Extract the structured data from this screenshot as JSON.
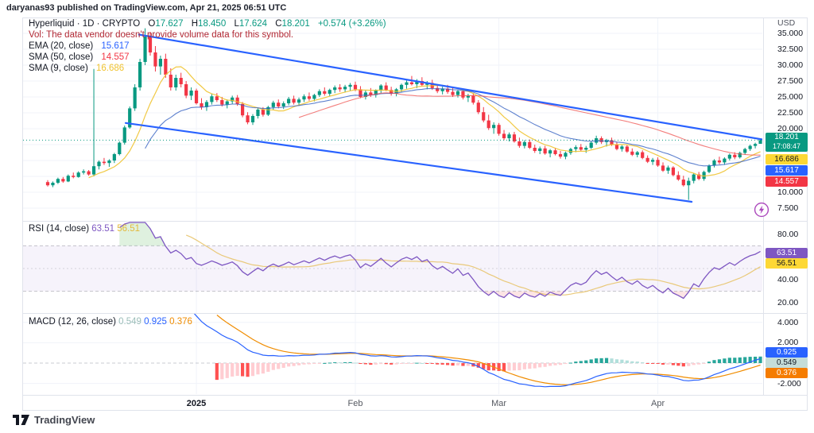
{
  "header": {
    "published_line": "daryanas93 published on TradingView.com, Apr 21, 2025 06:51 UTC"
  },
  "watermark": {
    "brand": "TradingView"
  },
  "legend": {
    "symbol_text": "Hyperliquid · 1D · CRYPTO",
    "ohlc": {
      "o_l": "O",
      "o": "17.627",
      "h_l": "H",
      "h": "18.450",
      "l_l": "L",
      "l": "17.624",
      "c_l": "C",
      "c": "18.201",
      "chg": "+0.574 (+3.26%)"
    },
    "vol_line": "Vol: The data vendor doesn't provide volume data for this symbol.",
    "ema20": {
      "label": "EMA (20, close)",
      "value": "15.617"
    },
    "sma50": {
      "label": "SMA (50, close)",
      "value": "14.557"
    },
    "sma9": {
      "label": "SMA (9, close)",
      "value": "16.686"
    }
  },
  "rsi_pane": {
    "title": "RSI (14, close)",
    "value": "63.51",
    "ma_value": "56.51",
    "axis_ticks": [
      "80.00",
      "40.00",
      "20.00"
    ]
  },
  "macd_pane": {
    "title": "MACD (12, 26, close)",
    "hist_value": "0.549",
    "macd_value": "0.925",
    "signal_value": "0.376",
    "axis_ticks": [
      "4.000",
      "2.000",
      "-2.000"
    ]
  },
  "price_axis": {
    "currency": "USD",
    "ticks": [
      "35.000",
      "32.500",
      "30.000",
      "27.500",
      "25.000",
      "22.500",
      "20.000",
      "10.000",
      "7.500"
    ],
    "badges": {
      "last": {
        "value": "18.201",
        "countdown": "17:08:47"
      },
      "sma9": {
        "value": "16.686"
      },
      "ema20": {
        "value": "15.617"
      },
      "sma50": {
        "value": "14.557"
      }
    }
  },
  "time_axis": {
    "ticks": [
      {
        "label": "2025",
        "i": 29
      },
      {
        "label": "Feb",
        "i": 60
      },
      {
        "label": "Mar",
        "i": 88
      },
      {
        "label": "Apr",
        "i": 119
      }
    ]
  },
  "colors": {
    "up": "#089981",
    "down": "#f23645",
    "ohlc_values": "#089981",
    "vol_warning": "#b22833",
    "ema20_line": "#3661c2",
    "sma50_line": "#ef5350",
    "sma9_line": "#f0c330",
    "ema20_value": "#2962ff",
    "sma50_value": "#f23645",
    "sma9_value": "#f0c330",
    "channel": "#2962ff",
    "last_price_line": "#089981",
    "rsi_line": "#7e57c2",
    "rsi_ma_line": "#e8c46b",
    "rsi_band": "#7e57c2",
    "rsi_value": "#7e57c2",
    "rsi_ma_value": "#e3b93c",
    "overbought_fill": "#4caf50",
    "oversold_fill": "#ef5350",
    "macd_line": "#2962ff",
    "signal_line": "#f08c00",
    "macd_value": "#2962ff",
    "signal_value": "#f08c00",
    "hist_value": "#9bbdb8",
    "hist_grow_above": "#26a69a",
    "hist_fall_above": "#b2dfdb",
    "hist_fall_below": "#ff5252",
    "hist_grow_below": "#ffcdd2",
    "badge_last_bg": "#089981",
    "badge_sma9_bg": "#fdd835",
    "badge_ema20_bg": "#2962ff",
    "badge_sma50_bg": "#f23645",
    "badge_rsi_bg": "#7e57c2",
    "badge_rsima_bg": "#fdd835",
    "badge_macd_bg": "#2962ff",
    "badge_hist_bg": "#c5ddd9",
    "badge_signal_bg": "#f57c00",
    "grid": "#f0f3fa",
    "frame": "#e0e3eb",
    "dashed_level": "#9598a1"
  },
  "chart_data": {
    "type": "candlestick",
    "symbol": "Hyperliquid",
    "interval": "1D",
    "currency": "USD",
    "price_range": [
      5.5,
      37.5
    ],
    "last_close": 18.201,
    "candles": [
      [
        11.6,
        11.9,
        10.9,
        11.1
      ],
      [
        11.1,
        11.7,
        10.8,
        11.5
      ],
      [
        11.5,
        12.3,
        11.3,
        12.1
      ],
      [
        12.1,
        12.4,
        11.5,
        11.7
      ],
      [
        11.7,
        12.8,
        11.6,
        12.6
      ],
      [
        12.6,
        13.1,
        12.2,
        12.4
      ],
      [
        12.4,
        13.3,
        12.3,
        13.1
      ],
      [
        13.1,
        13.6,
        12.8,
        13.3
      ],
      [
        13.3,
        13.5,
        12.6,
        12.8
      ],
      [
        12.8,
        29.4,
        12.5,
        14.1
      ],
      [
        14.1,
        15.0,
        13.6,
        14.8
      ],
      [
        14.8,
        15.4,
        14.3,
        14.6
      ],
      [
        14.6,
        15.2,
        14.0,
        15.0
      ],
      [
        15.0,
        16.2,
        14.6,
        16.0
      ],
      [
        16.0,
        18.0,
        15.8,
        17.8
      ],
      [
        17.8,
        20.5,
        17.5,
        20.2
      ],
      [
        20.2,
        23.5,
        20.0,
        23.2
      ],
      [
        23.2,
        27.0,
        22.8,
        26.5
      ],
      [
        26.5,
        31.0,
        26.0,
        30.5
      ],
      [
        30.5,
        35.8,
        30.0,
        34.5
      ],
      [
        34.5,
        35.2,
        31.5,
        32.0
      ],
      [
        32.0,
        33.0,
        29.0,
        29.8
      ],
      [
        29.8,
        31.5,
        28.5,
        31.0
      ],
      [
        31.0,
        31.8,
        28.0,
        28.5
      ],
      [
        28.5,
        29.5,
        26.0,
        26.5
      ],
      [
        26.5,
        28.5,
        26.0,
        28.0
      ],
      [
        28.0,
        28.8,
        26.5,
        27.0
      ],
      [
        27.0,
        27.5,
        24.8,
        25.2
      ],
      [
        25.2,
        26.5,
        24.5,
        26.0
      ],
      [
        26.0,
        26.3,
        23.8,
        24.0
      ],
      [
        24.0,
        24.8,
        23.0,
        23.4
      ],
      [
        23.4,
        24.5,
        22.8,
        24.2
      ],
      [
        24.2,
        25.5,
        23.8,
        25.1
      ],
      [
        25.1,
        25.6,
        24.2,
        24.5
      ],
      [
        24.5,
        25.0,
        23.5,
        23.8
      ],
      [
        23.8,
        24.6,
        23.2,
        24.3
      ],
      [
        24.3,
        25.2,
        23.9,
        24.9
      ],
      [
        24.9,
        25.3,
        23.6,
        23.9
      ],
      [
        23.9,
        24.2,
        21.8,
        22.1
      ],
      [
        22.1,
        22.6,
        20.7,
        21.0
      ],
      [
        21.0,
        22.3,
        20.6,
        22.0
      ],
      [
        22.0,
        23.2,
        21.6,
        23.0
      ],
      [
        23.0,
        23.4,
        21.9,
        22.2
      ],
      [
        22.2,
        23.6,
        22.0,
        23.4
      ],
      [
        23.4,
        24.4,
        23.0,
        24.1
      ],
      [
        24.1,
        24.6,
        23.2,
        23.5
      ],
      [
        23.5,
        24.3,
        23.1,
        24.0
      ],
      [
        24.0,
        25.0,
        23.7,
        24.7
      ],
      [
        24.7,
        25.2,
        23.8,
        24.1
      ],
      [
        24.1,
        24.9,
        23.6,
        24.6
      ],
      [
        24.6,
        25.4,
        24.2,
        25.1
      ],
      [
        25.1,
        25.7,
        24.4,
        24.7
      ],
      [
        24.7,
        25.5,
        24.3,
        25.3
      ],
      [
        25.3,
        26.2,
        25.0,
        25.9
      ],
      [
        25.9,
        26.5,
        25.2,
        25.5
      ],
      [
        25.5,
        26.3,
        25.1,
        26.1
      ],
      [
        26.1,
        26.8,
        25.6,
        26.5
      ],
      [
        26.5,
        27.0,
        25.8,
        26.2
      ],
      [
        26.2,
        26.9,
        25.7,
        26.6
      ],
      [
        26.6,
        27.2,
        26.0,
        26.9
      ],
      [
        26.9,
        27.4,
        25.9,
        26.2
      ],
      [
        26.2,
        26.7,
        24.8,
        25.0
      ],
      [
        25.0,
        26.0,
        24.6,
        25.7
      ],
      [
        25.7,
        26.4,
        25.0,
        25.3
      ],
      [
        25.3,
        26.2,
        24.9,
        26.0
      ],
      [
        26.0,
        27.0,
        25.6,
        26.8
      ],
      [
        26.8,
        27.3,
        25.9,
        26.1
      ],
      [
        26.1,
        26.6,
        25.2,
        25.5
      ],
      [
        25.5,
        26.4,
        25.1,
        26.2
      ],
      [
        26.2,
        27.1,
        25.8,
        26.9
      ],
      [
        26.9,
        27.6,
        26.3,
        27.3
      ],
      [
        27.3,
        28.3,
        26.8,
        27.0
      ],
      [
        27.0,
        27.8,
        26.4,
        27.5
      ],
      [
        27.5,
        28.1,
        26.7,
        26.9
      ],
      [
        26.9,
        27.5,
        26.2,
        27.2
      ],
      [
        27.2,
        27.7,
        26.1,
        26.4
      ],
      [
        26.4,
        27.0,
        25.6,
        25.9
      ],
      [
        25.9,
        26.6,
        25.4,
        26.3
      ],
      [
        26.3,
        26.9,
        25.5,
        25.8
      ],
      [
        25.8,
        26.4,
        25.0,
        25.3
      ],
      [
        25.3,
        26.1,
        24.9,
        25.9
      ],
      [
        25.9,
        26.3,
        24.6,
        24.9
      ],
      [
        24.9,
        25.5,
        24.2,
        25.2
      ],
      [
        25.2,
        25.6,
        23.8,
        24.1
      ],
      [
        24.1,
        24.5,
        22.3,
        22.6
      ],
      [
        22.6,
        23.4,
        21.0,
        21.3
      ],
      [
        21.3,
        22.2,
        19.8,
        20.1
      ],
      [
        20.1,
        21.0,
        19.2,
        20.6
      ],
      [
        20.6,
        20.9,
        18.9,
        19.2
      ],
      [
        19.2,
        19.8,
        18.2,
        18.5
      ],
      [
        18.5,
        19.4,
        18.0,
        19.1
      ],
      [
        19.1,
        19.5,
        17.8,
        18.0
      ],
      [
        18.0,
        18.6,
        17.0,
        17.3
      ],
      [
        17.3,
        18.2,
        16.9,
        17.9
      ],
      [
        17.9,
        18.3,
        16.8,
        17.0
      ],
      [
        17.0,
        17.5,
        16.2,
        16.5
      ],
      [
        16.5,
        17.2,
        16.0,
        16.9
      ],
      [
        16.9,
        17.3,
        15.9,
        16.1
      ],
      [
        16.1,
        16.8,
        15.5,
        16.6
      ],
      [
        16.6,
        17.0,
        15.8,
        16.0
      ],
      [
        16.0,
        16.5,
        15.3,
        15.6
      ],
      [
        15.6,
        16.4,
        15.2,
        16.2
      ],
      [
        16.2,
        17.0,
        15.9,
        16.8
      ],
      [
        16.8,
        17.4,
        16.3,
        17.1
      ],
      [
        17.1,
        17.6,
        16.5,
        16.7
      ],
      [
        16.7,
        17.3,
        16.2,
        17.0
      ],
      [
        17.0,
        18.0,
        16.8,
        17.8
      ],
      [
        17.8,
        18.9,
        17.5,
        18.5
      ],
      [
        18.5,
        18.8,
        17.6,
        17.9
      ],
      [
        17.9,
        18.4,
        17.2,
        18.2
      ],
      [
        18.2,
        18.6,
        17.3,
        17.5
      ],
      [
        17.5,
        17.9,
        16.6,
        16.8
      ],
      [
        16.8,
        17.4,
        16.4,
        17.2
      ],
      [
        17.2,
        17.5,
        16.2,
        16.4
      ],
      [
        16.4,
        16.9,
        15.7,
        15.9
      ],
      [
        15.9,
        16.5,
        15.5,
        16.3
      ],
      [
        16.3,
        16.6,
        15.2,
        15.4
      ],
      [
        15.4,
        15.8,
        14.6,
        14.8
      ],
      [
        14.8,
        15.4,
        14.3,
        15.1
      ],
      [
        15.1,
        15.5,
        14.0,
        14.2
      ],
      [
        14.2,
        14.7,
        13.2,
        13.4
      ],
      [
        13.4,
        14.2,
        12.9,
        13.9
      ],
      [
        13.9,
        14.1,
        12.5,
        12.7
      ],
      [
        12.7,
        13.3,
        11.8,
        12.0
      ],
      [
        12.0,
        12.6,
        10.9,
        11.1
      ],
      [
        11.1,
        12.3,
        8.8,
        11.8
      ],
      [
        11.8,
        13.0,
        11.4,
        12.8
      ],
      [
        12.8,
        13.2,
        11.9,
        12.1
      ],
      [
        12.1,
        13.4,
        11.8,
        13.2
      ],
      [
        13.2,
        14.4,
        13.0,
        14.2
      ],
      [
        14.2,
        15.2,
        13.9,
        15.0
      ],
      [
        15.0,
        15.6,
        14.4,
        14.7
      ],
      [
        14.7,
        15.5,
        14.3,
        15.3
      ],
      [
        15.3,
        16.1,
        15.0,
        15.9
      ],
      [
        15.9,
        16.3,
        15.2,
        15.5
      ],
      [
        15.5,
        16.4,
        15.3,
        16.2
      ],
      [
        16.2,
        17.0,
        15.9,
        16.8
      ],
      [
        16.8,
        17.5,
        16.5,
        17.3
      ],
      [
        17.3,
        17.8,
        16.9,
        17.6
      ],
      [
        17.627,
        18.45,
        17.624,
        18.201
      ]
    ],
    "overlays": {
      "sma9_period": 9,
      "ema20_period": 20,
      "sma50_period": 50
    },
    "rsi": {
      "period": 14,
      "ma_period": 14,
      "levels": [
        70,
        50,
        30
      ]
    },
    "macd": {
      "fast": 12,
      "slow": 26,
      "signal": 9
    },
    "trendlines": [
      {
        "i1": 17.8,
        "p1": 34.8,
        "i2": 139.5,
        "p2": 18.3
      },
      {
        "i1": 15.2,
        "p1": 20.9,
        "i2": 125.6,
        "p2": 8.5
      }
    ]
  }
}
